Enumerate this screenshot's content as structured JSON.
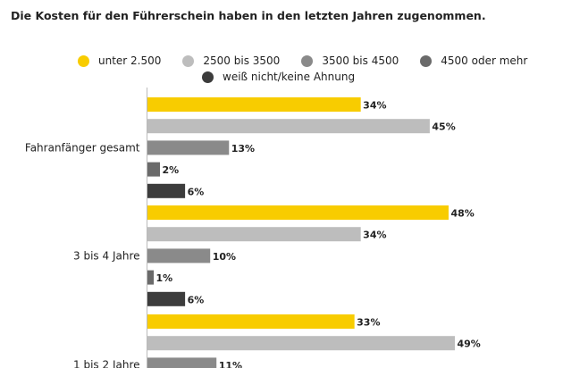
{
  "chart_data": {
    "type": "bar",
    "orientation": "horizontal",
    "title": "Die Kosten für den Führerschein haben in den letzten Jahren zugenommen.",
    "categories": [
      "Fahranfänger gesamt",
      "3 bis 4 Jahre",
      "1 bis 2 Jahre"
    ],
    "series": [
      {
        "name": "unter 2.500",
        "color": "#F8CC00",
        "values": [
          34,
          48,
          33
        ],
        "labels": [
          "34%",
          "48%",
          "33%"
        ]
      },
      {
        "name": "2500 bis 3500",
        "color": "#BDBDBD",
        "values": [
          45,
          34,
          49
        ],
        "labels": [
          "45%",
          "34%",
          "49%"
        ]
      },
      {
        "name": "3500 bis 4500",
        "color": "#8A8A8A",
        "values": [
          13,
          10,
          11
        ],
        "labels": [
          "13%",
          "10%",
          "11%"
        ]
      },
      {
        "name": "4500 oder mehr",
        "color": "#6A6A6A",
        "values": [
          2,
          1,
          null
        ],
        "labels": [
          "2%",
          "1%",
          ""
        ]
      },
      {
        "name": "weiß nicht/keine Ahnung",
        "color": "#3C3C3C",
        "values": [
          6,
          6,
          null
        ],
        "labels": [
          "6%",
          "6%",
          ""
        ]
      }
    ],
    "value_unit": "%",
    "legend_position": "top",
    "grid": false
  }
}
